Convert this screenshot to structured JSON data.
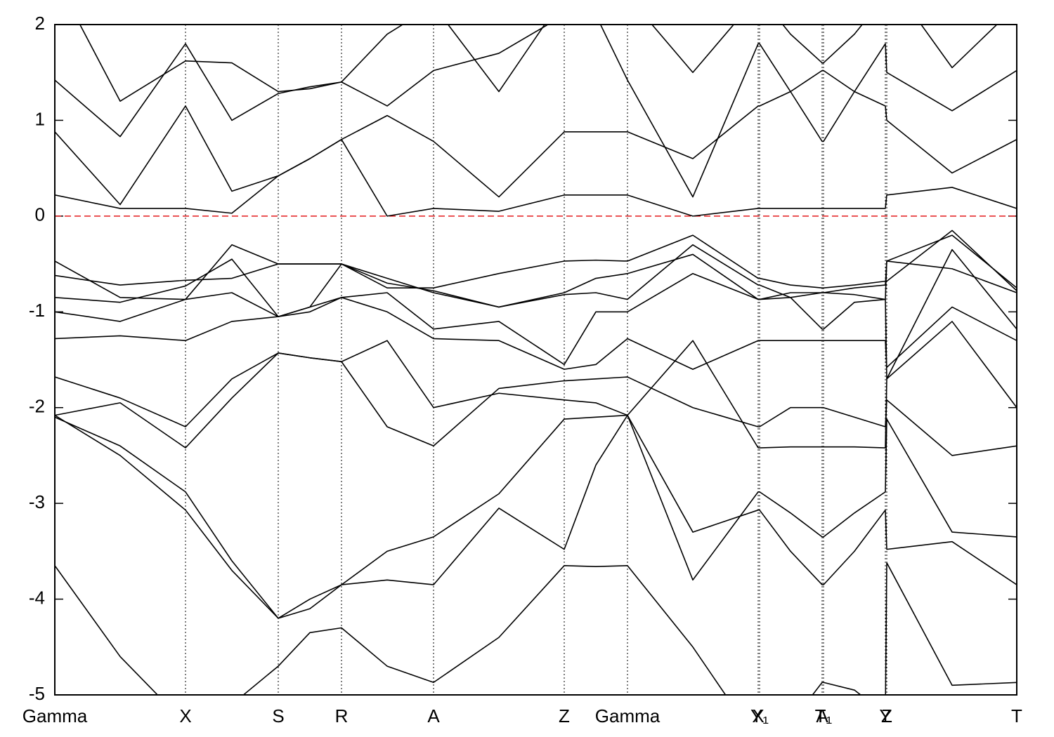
{
  "chart_data": {
    "type": "line",
    "x": [
      0,
      0.93,
      1.86,
      2.52,
      3.18,
      3.63,
      4.08,
      4.73,
      5.39,
      6.32,
      7.25,
      7.7,
      8.15,
      9.08,
      10.01,
      10.03,
      10.47,
      10.92,
      10.94,
      11.38,
      11.82,
      11.84,
      12.77,
      13.69
    ],
    "series": [
      {
        "color": "#000000",
        "values": [
          -3.65,
          -4.6,
          -5.3,
          -5.1,
          -4.7,
          -4.35,
          -4.3,
          -4.7,
          -4.87,
          -4.4,
          -3.65,
          -3.66,
          -3.65,
          -4.5,
          -5.5,
          -5.5,
          -5.3,
          -4.87,
          -4.87,
          -4.95,
          -5.2,
          -3.62,
          -4.9,
          -4.87
        ]
      },
      {
        "color": "#000000",
        "values": [
          -2.08,
          -2.5,
          -3.07,
          -3.7,
          -4.2,
          -4.1,
          -3.85,
          -3.8,
          -3.85,
          -3.05,
          -3.48,
          -2.6,
          -2.08,
          -3.3,
          -3.07,
          -3.07,
          -3.5,
          -3.85,
          -3.85,
          -3.5,
          -3.07,
          -3.48,
          -3.4,
          -3.85
        ]
      },
      {
        "color": "#000000",
        "values": [
          -2.1,
          -2.4,
          -2.88,
          -3.6,
          -4.2,
          -4.0,
          -3.85,
          -3.5,
          -3.35,
          -2.9,
          -2.12,
          -2.1,
          -2.08,
          -3.8,
          -2.88,
          -2.88,
          -3.1,
          -3.35,
          -3.35,
          -3.1,
          -2.88,
          -2.12,
          -3.3,
          -3.35
        ]
      },
      {
        "color": "#000000",
        "values": [
          -1.68,
          -1.9,
          -2.2,
          -1.7,
          -1.43,
          -1.48,
          -1.52,
          -2.2,
          -2.4,
          -1.8,
          -1.72,
          -1.7,
          -1.68,
          -2.0,
          -2.2,
          -2.2,
          -2.0,
          -2.0,
          -2.0,
          -2.1,
          -2.2,
          -1.92,
          -2.5,
          -2.4
        ]
      },
      {
        "color": "#000000",
        "values": [
          -2.08,
          -1.95,
          -2.42,
          -1.9,
          -1.43,
          -1.48,
          -1.52,
          -1.3,
          -2.0,
          -1.85,
          -1.92,
          -1.95,
          -2.08,
          -1.3,
          -2.42,
          -2.42,
          -2.41,
          -2.41,
          -2.41,
          -2.41,
          -2.42,
          -1.7,
          -1.1,
          -2.0
        ]
      },
      {
        "color": "#000000",
        "values": [
          -1.28,
          -1.25,
          -1.3,
          -1.1,
          -1.05,
          -0.95,
          -0.85,
          -1.0,
          -1.28,
          -1.3,
          -1.6,
          -1.55,
          -1.28,
          -1.6,
          -1.3,
          -1.3,
          -1.3,
          -1.3,
          -1.3,
          -1.3,
          -1.3,
          -1.58,
          -0.95,
          -1.3
        ]
      },
      {
        "color": "#000000",
        "values": [
          -1.0,
          -1.1,
          -0.87,
          -0.8,
          -1.05,
          -1.0,
          -0.85,
          -0.8,
          -1.18,
          -1.1,
          -1.55,
          -1.0,
          -1.0,
          -0.6,
          -0.87,
          -0.87,
          -0.85,
          -1.18,
          -1.18,
          -0.9,
          -0.87,
          -1.7,
          -0.35,
          -1.18
        ]
      },
      {
        "color": "#000000",
        "values": [
          -0.85,
          -0.9,
          -0.73,
          -0.45,
          -1.05,
          -0.95,
          -0.5,
          -0.7,
          -0.78,
          -0.95,
          -0.82,
          -0.8,
          -0.87,
          -0.3,
          -0.72,
          -0.72,
          -0.85,
          -0.8,
          -0.8,
          -0.75,
          -0.72,
          -0.47,
          -0.55,
          -0.8
        ]
      },
      {
        "color": "#000000",
        "values": [
          -0.47,
          -0.85,
          -0.87,
          -0.3,
          -0.5,
          -0.5,
          -0.5,
          -0.65,
          -0.8,
          -0.95,
          -0.8,
          -0.65,
          -0.6,
          -0.4,
          -0.87,
          -0.87,
          -0.8,
          -0.8,
          -0.8,
          -0.82,
          -0.87,
          -0.47,
          -0.2,
          -0.75
        ]
      },
      {
        "color": "#000000",
        "values": [
          -0.62,
          -0.72,
          -0.67,
          -0.65,
          -0.5,
          -0.5,
          -0.5,
          -0.75,
          -0.75,
          -0.6,
          -0.47,
          -0.46,
          -0.47,
          -0.2,
          -0.65,
          -0.65,
          -0.72,
          -0.75,
          -0.75,
          -0.72,
          -0.68,
          -0.68,
          -0.15,
          -0.78
        ]
      },
      {
        "color": "#000000",
        "values": [
          0.22,
          0.08,
          0.08,
          0.03,
          0.42,
          0.6,
          0.8,
          0.0,
          0.08,
          0.05,
          0.22,
          0.22,
          0.22,
          0.0,
          0.08,
          0.08,
          0.08,
          0.08,
          0.08,
          0.08,
          0.08,
          0.22,
          0.3,
          0.08
        ]
      },
      {
        "color": "#000000",
        "values": [
          0.88,
          0.12,
          1.15,
          0.26,
          0.42,
          0.6,
          0.8,
          1.05,
          0.78,
          0.2,
          0.88,
          0.88,
          0.88,
          0.6,
          1.15,
          1.15,
          1.3,
          0.78,
          0.78,
          1.3,
          1.15,
          1.0,
          0.45,
          0.8
        ]
      },
      {
        "color": "#000000",
        "values": [
          1.42,
          0.83,
          1.8,
          1.0,
          1.28,
          1.35,
          1.4,
          1.15,
          1.52,
          1.7,
          2.1,
          2.1,
          1.42,
          0.2,
          1.8,
          1.8,
          1.3,
          1.52,
          1.52,
          1.3,
          1.8,
          1.5,
          1.1,
          1.52
        ]
      },
      {
        "color": "#000000",
        "values": [
          2.5,
          1.2,
          1.62,
          1.6,
          1.3,
          1.33,
          1.4,
          1.9,
          2.2,
          1.3,
          2.3,
          2.3,
          2.3,
          1.5,
          2.3,
          2.3,
          1.9,
          1.6,
          1.6,
          1.9,
          2.3,
          2.5,
          1.55,
          2.2
        ]
      }
    ],
    "xlim": [
      0,
      13.69
    ],
    "xticks": [
      {
        "value": 0,
        "label": "Gamma"
      },
      {
        "value": 1.86,
        "label": "X"
      },
      {
        "value": 3.18,
        "label": "S"
      },
      {
        "value": 4.08,
        "label": "R"
      },
      {
        "value": 5.39,
        "label": "A"
      },
      {
        "value": 7.25,
        "label": "Z"
      },
      {
        "value": 8.15,
        "label": "Gamma"
      },
      {
        "value": 10.01,
        "label": "X"
      },
      {
        "value": 10.03,
        "label": "Y₁"
      },
      {
        "value": 10.92,
        "label": "A"
      },
      {
        "value": 10.94,
        "label": "T₁"
      },
      {
        "value": 11.82,
        "label": "Y"
      },
      {
        "value": 11.84,
        "label": "Z"
      },
      {
        "value": 13.69,
        "label": "T"
      }
    ],
    "ylim": [
      -5,
      2
    ],
    "yticks": [
      2,
      1,
      0,
      -1,
      -2,
      -3,
      -4,
      -5
    ],
    "reference_line": {
      "value": 0,
      "color": "#e41a1c"
    }
  }
}
